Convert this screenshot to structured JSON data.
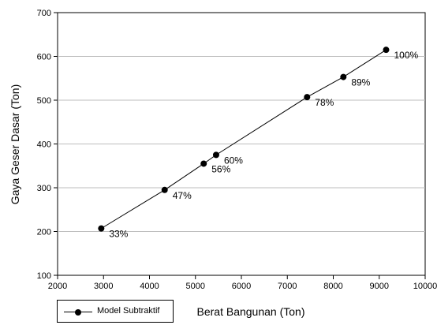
{
  "chart_data": {
    "type": "line",
    "xlabel": "Berat Bangunan (Ton)",
    "ylabel": "Gaya Geser Dasar (Ton)",
    "xlim": [
      2000,
      10000
    ],
    "ylim": [
      100,
      700
    ],
    "x_ticks": [
      2000,
      3000,
      4000,
      5000,
      6000,
      7000,
      8000,
      9000,
      10000
    ],
    "y_ticks": [
      100,
      200,
      300,
      400,
      500,
      600,
      700
    ],
    "grid": "horizontal",
    "legend_position": "bottom-left",
    "series": [
      {
        "name": "Model Subtraktif",
        "color": "#000000",
        "marker": "filled-circle",
        "x": [
          2950,
          4330,
          5180,
          5450,
          7430,
          8220,
          9150
        ],
        "y": [
          207,
          295,
          355,
          375,
          507,
          553,
          615
        ],
        "labels": [
          "33%",
          "47%",
          "56%",
          "60%",
          "78%",
          "89%",
          "100%"
        ]
      }
    ]
  }
}
